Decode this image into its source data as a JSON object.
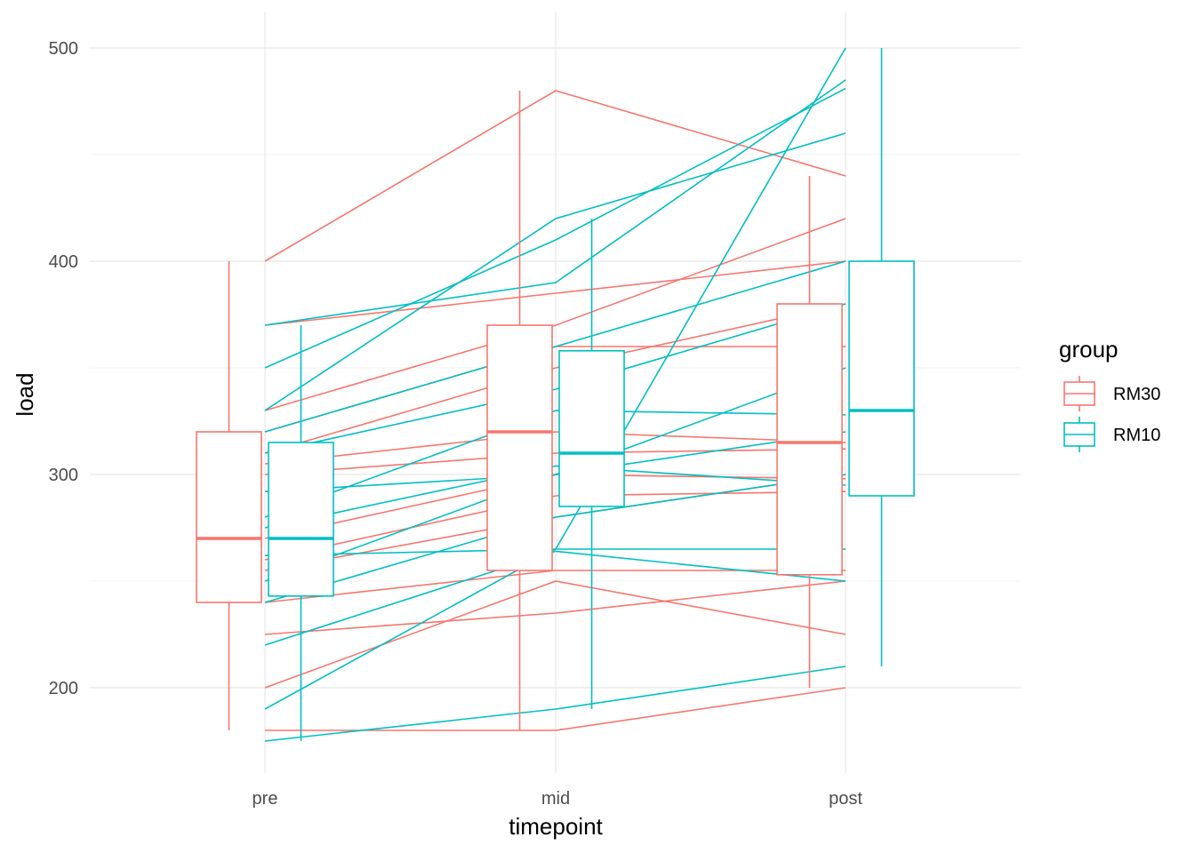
{
  "chart_data": {
    "type": "boxplot",
    "xlabel": "timepoint",
    "ylabel": "load",
    "categories": [
      "pre",
      "mid",
      "post"
    ],
    "y_ticks": [
      200,
      300,
      400,
      500
    ],
    "ylim": [
      155,
      515
    ],
    "grid": true,
    "legend": {
      "title": "group",
      "position": "right",
      "entries": [
        {
          "name": "RM30",
          "color": "#F8766D"
        },
        {
          "name": "RM10",
          "color": "#00BFC4"
        }
      ]
    },
    "series": [
      {
        "name": "RM30",
        "color": "#F8766D",
        "boxes": [
          {
            "category": "pre",
            "min": 180,
            "q1": 240,
            "median": 270,
            "q3": 320,
            "max": 400
          },
          {
            "category": "mid",
            "min": 180,
            "q1": 255,
            "median": 320,
            "q3": 370,
            "max": 480
          },
          {
            "category": "post",
            "min": 200,
            "q1": 253,
            "median": 315,
            "q3": 380,
            "max": 440
          }
        ],
        "subjects": [
          [
            400,
            480,
            440
          ],
          [
            370,
            385,
            400
          ],
          [
            330,
            370,
            420
          ],
          [
            320,
            360,
            360
          ],
          [
            310,
            350,
            380
          ],
          [
            305,
            320,
            315
          ],
          [
            300,
            310,
            312
          ],
          [
            270,
            300,
            298
          ],
          [
            260,
            290,
            292
          ],
          [
            255,
            280,
            300
          ],
          [
            240,
            255,
            255
          ],
          [
            225,
            235,
            250
          ],
          [
            200,
            250,
            225
          ],
          [
            180,
            180,
            200
          ]
        ]
      },
      {
        "name": "RM10",
        "color": "#00BFC4",
        "boxes": [
          {
            "category": "pre",
            "min": 175,
            "q1": 243,
            "median": 270,
            "q3": 315,
            "max": 370
          },
          {
            "category": "mid",
            "min": 190,
            "q1": 285,
            "median": 310,
            "q3": 358,
            "max": 420
          },
          {
            "category": "post",
            "min": 210,
            "q1": 290,
            "median": 330,
            "q3": 400,
            "max": 500
          }
        ],
        "subjects": [
          [
            370,
            390,
            485
          ],
          [
            350,
            410,
            481
          ],
          [
            330,
            420,
            460
          ],
          [
            320,
            360,
            400
          ],
          [
            310,
            340,
            380
          ],
          [
            292,
            300,
            320
          ],
          [
            280,
            330,
            328
          ],
          [
            275,
            304,
            295
          ],
          [
            262,
            265,
            265
          ],
          [
            250,
            300,
            350
          ],
          [
            240,
            280,
            300
          ],
          [
            220,
            264,
            250
          ],
          [
            190,
            265,
            500
          ],
          [
            175,
            190,
            210
          ]
        ]
      }
    ]
  }
}
